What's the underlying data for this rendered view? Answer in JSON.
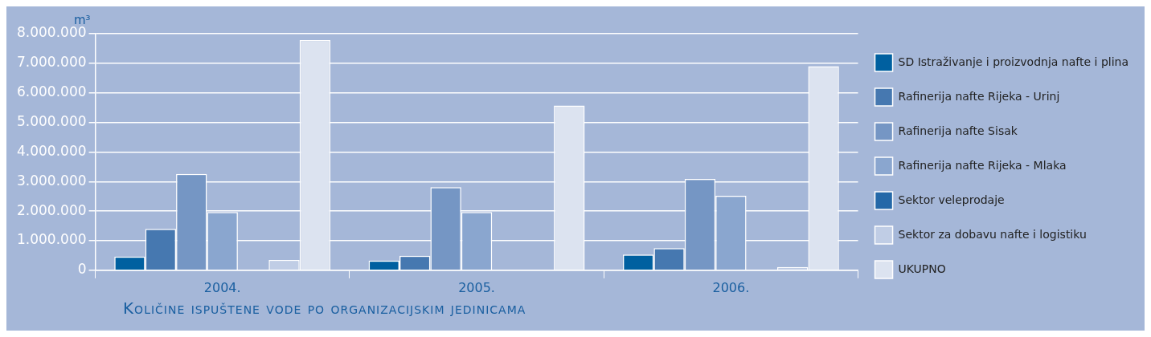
{
  "chart_data": {
    "type": "bar",
    "title": "Količine ispuštene vode po organizacijskim jedinicama",
    "ylabel": "m³",
    "categories": [
      "2004.",
      "2005.",
      "2006."
    ],
    "series": [
      {
        "name": "SD Istraživanje i proizvodnja nafte i plina",
        "color": "#0060a0",
        "values": [
          460000,
          330000,
          530000
        ]
      },
      {
        "name": "Rafinerija nafte Rijeka - Urinj",
        "color": "#4678b0",
        "values": [
          1400000,
          490000,
          750000
        ]
      },
      {
        "name": "Rafinerija nafte Sisak",
        "color": "#7596c4",
        "values": [
          3260000,
          2810000,
          3090000
        ]
      },
      {
        "name": "Rafinerija nafte Rijeka - Mlaka",
        "color": "#8aa6cf",
        "values": [
          1970000,
          1970000,
          2520000
        ]
      },
      {
        "name": "Sektor veleprodaje",
        "color": "#2468a8",
        "values": [
          null,
          null,
          null
        ]
      },
      {
        "name": "Sektor za dobavu nafte i logistiku",
        "color": "#c0cde5",
        "values": [
          350000,
          null,
          110000
        ]
      },
      {
        "name": "UKUPNO",
        "color": "#dce3f0",
        "values": [
          7780000,
          5570000,
          6900000
        ]
      }
    ],
    "ylim": [
      0,
      8000000
    ],
    "yticks": [
      {
        "value": 0,
        "label": "0"
      },
      {
        "value": 1000000,
        "label": "1.000.000"
      },
      {
        "value": 2000000,
        "label": "2.000.000"
      },
      {
        "value": 3000000,
        "label": "3.000.000"
      },
      {
        "value": 4000000,
        "label": "4.000.000"
      },
      {
        "value": 5000000,
        "label": "5.000.000"
      },
      {
        "value": 6000000,
        "label": "6.000.000"
      },
      {
        "value": 7000000,
        "label": "7.000.000"
      },
      {
        "value": 8000000,
        "label": "8.000.000"
      }
    ],
    "grid": "y",
    "legend": "right"
  }
}
